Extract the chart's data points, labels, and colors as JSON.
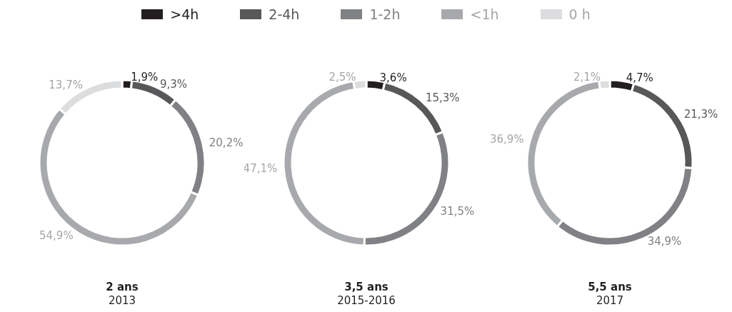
{
  "chart_data": [
    {
      "type": "donut",
      "title": "2 ans",
      "subtitle": "2013",
      "legend": "top",
      "categories": [
        ">4h",
        "2-4h",
        "1-2h",
        "<1h",
        "0 h"
      ],
      "colors": [
        "#231f20",
        "#58585a",
        "#808184",
        "#a7a9ac",
        "#dcdddf"
      ],
      "values": [
        1.9,
        9.3,
        20.2,
        54.9,
        13.7
      ],
      "value_labels": [
        "1,9%",
        "9,3%",
        "20,2%",
        "54,9%",
        "13,7%"
      ]
    },
    {
      "type": "donut",
      "title": "3,5 ans",
      "subtitle": "2015-2016",
      "categories": [
        null,
        null,
        null,
        null,
        null
      ],
      "colors": [
        "#231f20",
        "#58585a",
        "#808184",
        "#a7a9ac",
        "#dcdddf"
      ],
      "values": [
        3.6,
        15.3,
        31.5,
        47.1,
        2.5
      ],
      "value_labels": [
        "3,6%",
        "15,3%",
        "31,5%",
        "47,1%",
        "2,5%"
      ]
    },
    {
      "type": "donut",
      "title": "5,5 ans",
      "subtitle": "2017",
      "categories": [
        null,
        null,
        null,
        null,
        null
      ],
      "colors": [
        "#231f20",
        "#58585a",
        "#808184",
        "#a7a9ac",
        "#dcdddf"
      ],
      "values": [
        4.7,
        21.3,
        34.9,
        36.9,
        2.1
      ],
      "value_labels": [
        "4,7%",
        "21,3%",
        "34,9%",
        "36,9%",
        "2,1%"
      ]
    }
  ]
}
